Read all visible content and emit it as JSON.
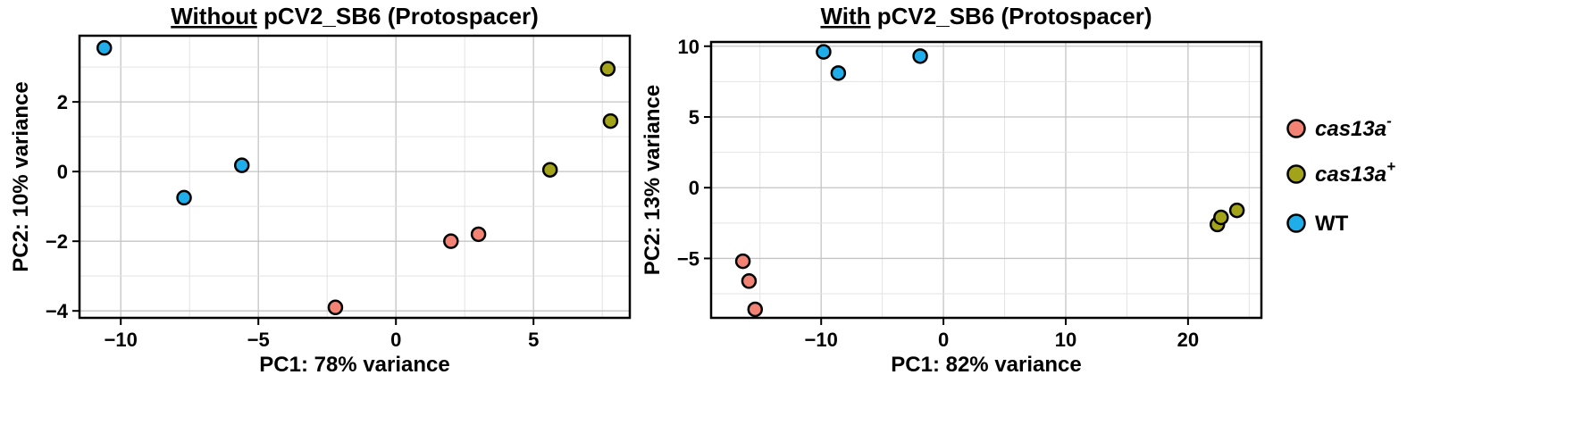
{
  "colors": {
    "cas13a_minus": "#F28274",
    "cas13a_plus": "#A3A319",
    "WT": "#20AEEA"
  },
  "legend": {
    "items": [
      {
        "key": "cas13a_minus",
        "base": "cas13a",
        "sup": "-",
        "italic": true
      },
      {
        "key": "cas13a_plus",
        "base": "cas13a",
        "sup": "+",
        "italic": true
      },
      {
        "key": "WT",
        "base": "WT",
        "sup": "",
        "italic": false
      }
    ]
  },
  "chart_data": [
    {
      "type": "scatter",
      "title_underlined": "Without",
      "title_rest": " pCV2_SB6 (Protospacer)",
      "xlabel": "PC1: 78% variance",
      "ylabel": "PC2: 10% variance",
      "xlim": [
        -11.5,
        8.5
      ],
      "ylim": [
        -4.2,
        3.9
      ],
      "xticks": [
        -10,
        -5,
        0,
        5
      ],
      "xtick_labels": [
        "−10",
        "−5",
        "0",
        "5"
      ],
      "yticks": [
        -4,
        -2,
        0,
        2
      ],
      "ytick_labels": [
        "−4",
        "−2",
        "0",
        "2"
      ],
      "grid": true,
      "series": [
        {
          "key": "cas13a_minus",
          "points": [
            [
              -2.2,
              -3.9
            ],
            [
              2.0,
              -2.0
            ],
            [
              3.0,
              -1.8
            ]
          ]
        },
        {
          "key": "cas13a_plus",
          "points": [
            [
              5.6,
              0.05
            ],
            [
              7.7,
              2.95
            ],
            [
              7.8,
              1.45
            ]
          ]
        },
        {
          "key": "WT",
          "points": [
            [
              -10.6,
              3.55
            ],
            [
              -7.7,
              -0.75
            ],
            [
              -5.6,
              0.18
            ]
          ]
        }
      ]
    },
    {
      "type": "scatter",
      "title_underlined": "With",
      "title_rest": " pCV2_SB6 (Protospacer)",
      "xlabel": "PC1: 82% variance",
      "ylabel": "PC2: 13% variance",
      "xlim": [
        -19,
        26
      ],
      "ylim": [
        -9.2,
        10.3
      ],
      "xticks": [
        -10,
        0,
        10,
        20
      ],
      "xtick_labels": [
        "−10",
        "0",
        "10",
        "20"
      ],
      "yticks": [
        -5,
        0,
        5,
        10
      ],
      "ytick_labels": [
        "−5",
        "0",
        "5",
        "10"
      ],
      "grid": true,
      "series": [
        {
          "key": "cas13a_minus",
          "points": [
            [
              -16.4,
              -5.2
            ],
            [
              -15.9,
              -6.6
            ],
            [
              -15.4,
              -8.6
            ]
          ]
        },
        {
          "key": "cas13a_plus",
          "points": [
            [
              22.4,
              -2.6
            ],
            [
              22.7,
              -2.1
            ],
            [
              24.0,
              -1.6
            ]
          ]
        },
        {
          "key": "WT",
          "points": [
            [
              -9.8,
              9.6
            ],
            [
              -8.6,
              8.1
            ],
            [
              -1.9,
              9.3
            ]
          ]
        }
      ]
    }
  ]
}
